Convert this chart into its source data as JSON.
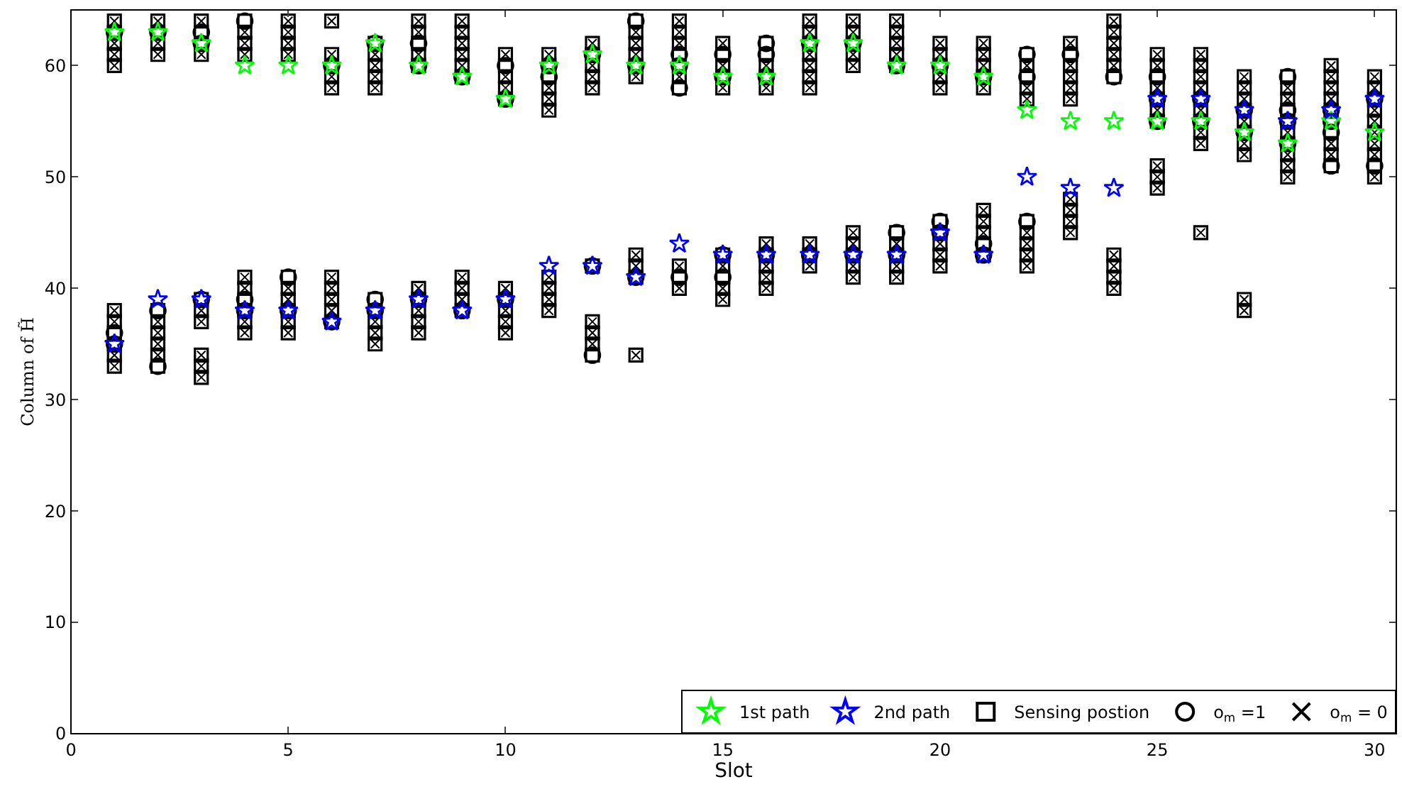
{
  "chart_data": {
    "type": "scatter",
    "xlabel": "Slot",
    "ylabel": "Column of H̃",
    "xlim": [
      0,
      30.5
    ],
    "xticks": [
      0,
      5,
      10,
      15,
      20,
      25,
      30
    ],
    "ylim": [
      0,
      65
    ],
    "yticks": [
      0,
      10,
      20,
      30,
      40,
      50,
      60
    ],
    "grid": false,
    "legend": "bottom right",
    "series": [
      {
        "name": "1st path",
        "color": "#00ff00",
        "marker": "star",
        "x": [
          1,
          2,
          3,
          4,
          5,
          6,
          7,
          8,
          9,
          10,
          11,
          12,
          13,
          14,
          15,
          16,
          17,
          18,
          19,
          20,
          21,
          22,
          23,
          24,
          25,
          26,
          27,
          28,
          29,
          30
        ],
        "values": [
          63,
          63,
          62,
          60,
          60,
          60,
          62,
          60,
          59,
          57,
          60,
          61,
          60,
          60,
          59,
          59,
          62,
          62,
          60,
          60,
          59,
          56,
          55,
          55,
          55,
          55,
          54,
          53,
          55,
          54
        ]
      },
      {
        "name": "2nd path",
        "color": "#0000ff",
        "marker": "star",
        "x": [
          1,
          2,
          3,
          4,
          5,
          6,
          7,
          8,
          9,
          10,
          11,
          12,
          13,
          14,
          15,
          16,
          17,
          18,
          19,
          20,
          21,
          22,
          23,
          24,
          25,
          26,
          27,
          28,
          29,
          30
        ],
        "values": [
          35,
          39,
          39,
          38,
          38,
          37,
          38,
          39,
          38,
          39,
          42,
          42,
          41,
          44,
          43,
          43,
          43,
          43,
          43,
          45,
          43,
          50,
          49,
          49,
          57,
          57,
          56,
          55,
          56,
          57
        ]
      },
      {
        "name": "Sensing postion",
        "color": "#000000",
        "marker": "square",
        "x": [
          1,
          1,
          1,
          1,
          1,
          1,
          1,
          1,
          1,
          1,
          1,
          2,
          2,
          2,
          2,
          2,
          2,
          2,
          2,
          2,
          2,
          3,
          3,
          3,
          3,
          3,
          3,
          3,
          3,
          3,
          3,
          4,
          4,
          4,
          4,
          4,
          4,
          4,
          4,
          4,
          4,
          5,
          5,
          5,
          5,
          5,
          5,
          5,
          5,
          5,
          5,
          6,
          6,
          6,
          6,
          6,
          6,
          6,
          6,
          6,
          6,
          7,
          7,
          7,
          7,
          7,
          7,
          7,
          7,
          7,
          7,
          8,
          8,
          8,
          8,
          8,
          8,
          8,
          8,
          8,
          8,
          9,
          9,
          9,
          9,
          9,
          9,
          9,
          9,
          9,
          9,
          10,
          10,
          10,
          10,
          10,
          10,
          10,
          10,
          10,
          10,
          11,
          11,
          11,
          11,
          11,
          11,
          11,
          11,
          11,
          11,
          12,
          12,
          12,
          12,
          12,
          12,
          12,
          12,
          12,
          12,
          13,
          13,
          13,
          13,
          13,
          13,
          13,
          13,
          13,
          13,
          14,
          14,
          14,
          14,
          14,
          14,
          14,
          14,
          14,
          14,
          15,
          15,
          15,
          15,
          15,
          15,
          15,
          15,
          15,
          15,
          16,
          16,
          16,
          16,
          16,
          16,
          16,
          16,
          16,
          16,
          17,
          17,
          17,
          17,
          17,
          17,
          17,
          17,
          17,
          17,
          18,
          18,
          18,
          18,
          18,
          18,
          18,
          18,
          18,
          18,
          19,
          19,
          19,
          19,
          19,
          19,
          19,
          19,
          19,
          19,
          20,
          20,
          20,
          20,
          20,
          20,
          20,
          20,
          20,
          20,
          21,
          21,
          21,
          21,
          21,
          21,
          21,
          21,
          21,
          21,
          22,
          22,
          22,
          22,
          22,
          22,
          22,
          22,
          22,
          22,
          23,
          23,
          23,
          23,
          23,
          23,
          23,
          23,
          23,
          23,
          24,
          24,
          24,
          24,
          24,
          24,
          24,
          24,
          24,
          24,
          25,
          25,
          25,
          25,
          25,
          25,
          25,
          25,
          25,
          25,
          26,
          26,
          26,
          26,
          26,
          26,
          26,
          26,
          26,
          26,
          27,
          27,
          27,
          27,
          27,
          27,
          27,
          27,
          27,
          27,
          28,
          28,
          28,
          28,
          28,
          28,
          28,
          28,
          28,
          28,
          29,
          29,
          29,
          29,
          29,
          29,
          29,
          29,
          29,
          29,
          30,
          30,
          30,
          30,
          30,
          30,
          30,
          30,
          30,
          30
        ],
        "values": [
          64,
          63,
          62,
          61,
          60,
          38,
          37,
          36,
          35,
          34,
          33,
          64,
          63,
          62,
          61,
          38,
          37,
          36,
          35,
          34,
          33,
          64,
          63,
          62,
          61,
          39,
          38,
          37,
          34,
          33,
          32,
          64,
          63,
          62,
          61,
          41,
          40,
          39,
          38,
          37,
          36,
          64,
          63,
          62,
          61,
          41,
          40,
          39,
          38,
          37,
          36,
          64,
          61,
          60,
          59,
          58,
          41,
          40,
          39,
          38,
          37,
          62,
          61,
          60,
          59,
          58,
          39,
          38,
          37,
          36,
          35,
          64,
          63,
          62,
          61,
          60,
          40,
          39,
          38,
          37,
          36,
          64,
          63,
          62,
          61,
          60,
          59,
          41,
          40,
          39,
          38,
          61,
          60,
          59,
          58,
          57,
          40,
          39,
          38,
          37,
          36,
          61,
          60,
          59,
          58,
          57,
          56,
          41,
          40,
          39,
          38,
          62,
          61,
          60,
          59,
          58,
          42,
          37,
          36,
          35,
          34,
          64,
          63,
          62,
          61,
          60,
          59,
          43,
          42,
          41,
          34,
          64,
          63,
          62,
          61,
          60,
          59,
          58,
          42,
          41,
          40,
          62,
          61,
          60,
          59,
          58,
          43,
          42,
          41,
          40,
          39,
          62,
          61,
          60,
          59,
          58,
          44,
          43,
          42,
          41,
          40,
          64,
          63,
          62,
          61,
          60,
          59,
          58,
          44,
          43,
          42,
          64,
          63,
          62,
          61,
          60,
          45,
          44,
          43,
          42,
          41,
          64,
          63,
          62,
          61,
          60,
          45,
          44,
          43,
          42,
          41,
          62,
          61,
          60,
          59,
          58,
          46,
          45,
          44,
          43,
          42,
          62,
          61,
          60,
          59,
          58,
          47,
          46,
          45,
          44,
          43,
          61,
          60,
          59,
          58,
          57,
          46,
          45,
          44,
          43,
          42,
          62,
          61,
          60,
          59,
          58,
          57,
          48,
          47,
          46,
          45,
          64,
          63,
          62,
          61,
          60,
          59,
          43,
          42,
          41,
          40,
          61,
          60,
          59,
          58,
          57,
          56,
          55,
          51,
          50,
          49,
          61,
          60,
          59,
          58,
          57,
          56,
          55,
          54,
          53,
          45,
          59,
          58,
          57,
          56,
          55,
          54,
          53,
          52,
          39,
          38,
          59,
          58,
          57,
          56,
          55,
          54,
          53,
          52,
          51,
          50,
          60,
          59,
          58,
          57,
          56,
          55,
          54,
          53,
          52,
          51,
          59,
          58,
          57,
          56,
          55,
          54,
          53,
          52,
          51,
          50
        ]
      },
      {
        "name": "o$_{m}$ =1",
        "color": "#000000",
        "marker": "circle",
        "x": [
          1,
          1,
          1,
          2,
          2,
          2,
          3,
          3,
          3,
          4,
          4,
          4,
          5,
          5,
          6,
          6,
          7,
          7,
          7,
          8,
          8,
          8,
          9,
          9,
          10,
          10,
          10,
          11,
          11,
          12,
          12,
          12,
          13,
          13,
          13,
          14,
          14,
          14,
          14,
          15,
          15,
          15,
          15,
          16,
          16,
          16,
          16,
          17,
          17,
          18,
          18,
          19,
          19,
          19,
          20,
          20,
          20,
          21,
          21,
          21,
          22,
          22,
          22,
          23,
          24,
          25,
          25,
          25,
          26,
          26,
          27,
          27,
          28,
          28,
          28,
          28,
          29,
          29,
          29,
          29,
          30,
          30
        ],
        "values": [
          63,
          36,
          35,
          63,
          38,
          33,
          63,
          62,
          39,
          64,
          39,
          38,
          41,
          38,
          60,
          37,
          62,
          39,
          38,
          62,
          60,
          39,
          59,
          38,
          60,
          57,
          39,
          60,
          59,
          61,
          42,
          34,
          64,
          60,
          41,
          61,
          60,
          58,
          41,
          61,
          59,
          43,
          41,
          62,
          61,
          59,
          43,
          62,
          43,
          62,
          43,
          60,
          45,
          43,
          60,
          46,
          45,
          59,
          44,
          43,
          61,
          59,
          46,
          61,
          59,
          59,
          57,
          55,
          57,
          55,
          56,
          54,
          59,
          56,
          55,
          53,
          56,
          55,
          54,
          51,
          57,
          51
        ]
      },
      {
        "name": "o$_{m}$ = 0",
        "color": "#000000",
        "marker": "cross",
        "x": [
          1,
          1,
          1,
          1,
          1,
          1,
          1,
          1,
          2,
          2,
          2,
          2,
          2,
          2,
          2,
          3,
          3,
          3,
          3,
          3,
          3,
          3,
          4,
          4,
          4,
          4,
          4,
          4,
          4,
          5,
          5,
          5,
          5,
          5,
          5,
          5,
          5,
          6,
          6,
          6,
          6,
          6,
          6,
          6,
          6,
          7,
          7,
          7,
          7,
          7,
          7,
          7,
          8,
          8,
          8,
          8,
          8,
          8,
          8,
          9,
          9,
          9,
          9,
          9,
          9,
          9,
          9,
          10,
          10,
          10,
          10,
          10,
          10,
          10,
          11,
          11,
          11,
          11,
          11,
          11,
          11,
          11,
          12,
          12,
          12,
          12,
          12,
          12,
          12,
          13,
          13,
          13,
          13,
          13,
          13,
          13,
          14,
          14,
          14,
          14,
          14,
          14,
          15,
          15,
          15,
          15,
          15,
          15,
          16,
          16,
          16,
          16,
          16,
          16,
          17,
          17,
          17,
          17,
          17,
          17,
          17,
          17,
          18,
          18,
          18,
          18,
          18,
          18,
          18,
          18,
          19,
          19,
          19,
          19,
          19,
          19,
          19,
          20,
          20,
          20,
          20,
          20,
          20,
          20,
          21,
          21,
          21,
          21,
          21,
          21,
          21,
          22,
          22,
          22,
          22,
          22,
          22,
          22,
          23,
          23,
          23,
          23,
          23,
          23,
          23,
          23,
          23,
          24,
          24,
          24,
          24,
          24,
          24,
          24,
          24,
          24,
          25,
          25,
          25,
          25,
          25,
          25,
          25,
          26,
          26,
          26,
          26,
          26,
          26,
          26,
          26,
          27,
          27,
          27,
          27,
          27,
          27,
          27,
          27,
          28,
          28,
          28,
          28,
          28,
          28,
          29,
          29,
          29,
          29,
          29,
          29,
          30,
          30,
          30,
          30,
          30,
          30,
          30,
          30
        ],
        "values": [
          64,
          62,
          61,
          60,
          38,
          37,
          34,
          33,
          64,
          62,
          61,
          37,
          36,
          35,
          34,
          64,
          61,
          38,
          37,
          34,
          33,
          32,
          63,
          62,
          61,
          41,
          40,
          37,
          36,
          64,
          63,
          62,
          61,
          40,
          39,
          37,
          36,
          64,
          61,
          59,
          58,
          41,
          40,
          39,
          38,
          61,
          60,
          59,
          58,
          37,
          36,
          35,
          64,
          63,
          61,
          40,
          38,
          37,
          36,
          64,
          63,
          62,
          61,
          60,
          41,
          40,
          39,
          61,
          59,
          58,
          40,
          38,
          37,
          36,
          61,
          58,
          57,
          56,
          41,
          40,
          39,
          38,
          62,
          60,
          59,
          58,
          37,
          36,
          35,
          63,
          62,
          61,
          59,
          43,
          42,
          34,
          64,
          63,
          62,
          59,
          42,
          40,
          62,
          60,
          58,
          42,
          40,
          39,
          60,
          58,
          44,
          42,
          41,
          40,
          64,
          63,
          61,
          60,
          59,
          58,
          44,
          42,
          64,
          63,
          61,
          60,
          45,
          44,
          42,
          41,
          64,
          63,
          62,
          61,
          44,
          42,
          41,
          62,
          61,
          59,
          58,
          44,
          43,
          42,
          62,
          61,
          60,
          58,
          47,
          46,
          45,
          60,
          58,
          57,
          45,
          44,
          43,
          42,
          62,
          60,
          59,
          58,
          57,
          48,
          47,
          46,
          45,
          64,
          63,
          62,
          61,
          60,
          43,
          42,
          41,
          40,
          61,
          60,
          58,
          56,
          51,
          50,
          49,
          61,
          60,
          59,
          58,
          56,
          54,
          53,
          45,
          59,
          58,
          57,
          55,
          53,
          52,
          39,
          38,
          58,
          57,
          54,
          52,
          51,
          50,
          60,
          59,
          58,
          57,
          53,
          52,
          59,
          58,
          56,
          55,
          54,
          53,
          52,
          50
        ]
      }
    ]
  }
}
